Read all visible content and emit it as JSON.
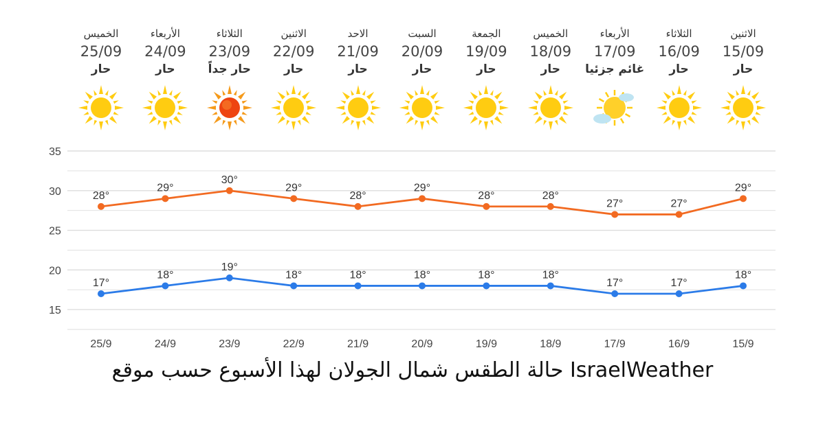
{
  "days": [
    {
      "name": "الاثنين",
      "date": "15/09",
      "cond": "حار",
      "icon": "sun-icon"
    },
    {
      "name": "الثلاثاء",
      "date": "16/09",
      "cond": "حار",
      "icon": "sun-icon"
    },
    {
      "name": "الأربعاء",
      "date": "17/09",
      "cond": "غائم جزئيا",
      "icon": "partly-cloudy-icon"
    },
    {
      "name": "الخميس",
      "date": "18/09",
      "cond": "حار",
      "icon": "sun-icon"
    },
    {
      "name": "الجمعة",
      "date": "19/09",
      "cond": "حار",
      "icon": "sun-icon"
    },
    {
      "name": "السبت",
      "date": "20/09",
      "cond": "حار",
      "icon": "sun-icon"
    },
    {
      "name": "الاحد",
      "date": "21/09",
      "cond": "حار",
      "icon": "sun-icon"
    },
    {
      "name": "الاثنين",
      "date": "22/09",
      "cond": "حار",
      "icon": "sun-icon"
    },
    {
      "name": "الثلاثاء",
      "date": "23/09",
      "cond": "حار جداً",
      "icon": "hot-sun-icon"
    },
    {
      "name": "الأربعاء",
      "date": "24/09",
      "cond": "حار",
      "icon": "sun-icon"
    },
    {
      "name": "الخميس",
      "date": "25/09",
      "cond": "حار",
      "icon": "sun-icon"
    }
  ],
  "caption": "حالة الطقس شمال الجولان لهذا الأسبوع حسب موقع IsraelWeather",
  "colors": {
    "high": "#f26a21",
    "low": "#2b7be8",
    "grid": "#dddddd",
    "sun": "#ffcc11",
    "hot_sun": "#ee4411"
  },
  "chart_data": {
    "type": "line",
    "categories": [
      "15/9",
      "16/9",
      "17/9",
      "18/9",
      "19/9",
      "20/9",
      "21/9",
      "22/9",
      "23/9",
      "24/9",
      "25/9"
    ],
    "series": [
      {
        "values": [
          29,
          27,
          27,
          28,
          28,
          29,
          28,
          29,
          30,
          29,
          28
        ]
      },
      {
        "values": [
          18,
          17,
          17,
          18,
          18,
          18,
          18,
          18,
          19,
          18,
          17
        ]
      }
    ],
    "data_label_suffix": "°",
    "y_ticks": [
      15,
      20,
      25,
      30,
      35
    ],
    "ylim": [
      12.5,
      35
    ],
    "x_direction": "right-to-left",
    "grid": true
  }
}
